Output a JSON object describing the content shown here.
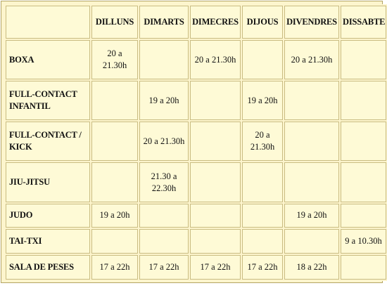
{
  "columns": [
    "DILLUNS",
    "DIMARTS",
    "DIMECRES",
    "DIJOUS",
    "DIVENDRES",
    "DISSABTE"
  ],
  "rows": [
    {
      "label": [
        "BOXA"
      ],
      "cells": [
        [
          "20 a",
          "21.30h"
        ],
        [],
        [
          "20 a 21.30h"
        ],
        [],
        [
          "20 a 21.30h"
        ],
        []
      ]
    },
    {
      "label": [
        "FULL-CONTACT",
        "INFANTIL"
      ],
      "cells": [
        [],
        [
          "19 a 20h"
        ],
        [],
        [
          "19 a 20h"
        ],
        [],
        []
      ]
    },
    {
      "label": [
        "FULL-CONTACT /",
        "KICK"
      ],
      "cells": [
        [],
        [
          "20 a 21.30h"
        ],
        [],
        [
          "20 a",
          "21.30h"
        ],
        [],
        []
      ]
    },
    {
      "label": [
        "JIU-JITSU"
      ],
      "cells": [
        [],
        [
          "21.30 a",
          "22.30h"
        ],
        [],
        [],
        [],
        []
      ]
    },
    {
      "label": [
        "JUDO"
      ],
      "cells": [
        [
          "19 a 20h"
        ],
        [],
        [],
        [],
        [
          "19 a 20h"
        ],
        []
      ]
    },
    {
      "label": [
        "TAI-TXI"
      ],
      "cells": [
        [],
        [],
        [],
        [],
        [],
        [
          "9 a 10.30h"
        ]
      ]
    },
    {
      "label": [
        "SALA DE PESES"
      ],
      "cells": [
        [
          "17 a 22h"
        ],
        [
          "17 a 22h"
        ],
        [
          "17 a 22h"
        ],
        [
          "17 a 22h"
        ],
        [
          "18 a 22h"
        ],
        []
      ]
    }
  ]
}
